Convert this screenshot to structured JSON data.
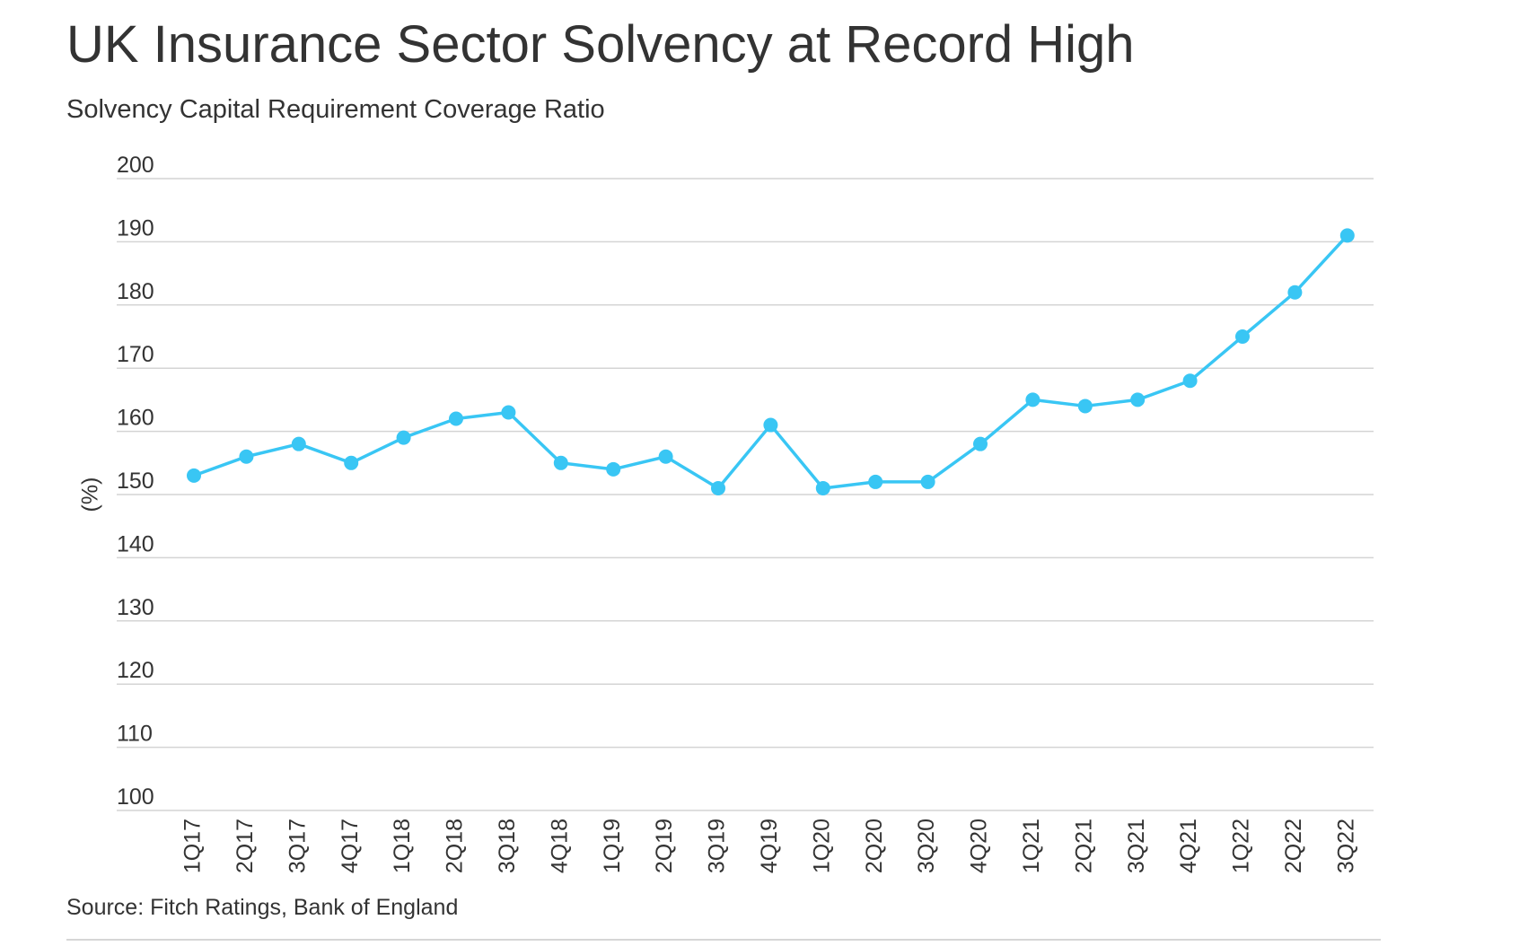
{
  "header": {
    "title": "UK Insurance Sector Solvency at Record High",
    "subtitle": "Solvency Capital Requirement Coverage Ratio"
  },
  "footer": {
    "source": "Source: Fitch Ratings, Bank of England"
  },
  "colors": {
    "series": "#39c6f4",
    "grid": "#d4d4d4",
    "text": "#333333"
  },
  "chart_data": {
    "type": "line",
    "title": "UK Insurance Sector Solvency at Record High",
    "subtitle": "Solvency Capital Requirement Coverage Ratio",
    "xlabel": "",
    "ylabel": "(%)",
    "ylim": [
      100,
      200
    ],
    "yticks": [
      "100",
      "110",
      "120",
      "130",
      "140",
      "150",
      "160",
      "170",
      "180",
      "190",
      "200"
    ],
    "grid": true,
    "legend": "none",
    "categories": [
      "1Q17",
      "2Q17",
      "3Q17",
      "4Q17",
      "1Q18",
      "2Q18",
      "3Q18",
      "4Q18",
      "1Q19",
      "2Q19",
      "3Q19",
      "4Q19",
      "1Q20",
      "2Q20",
      "3Q20",
      "4Q20",
      "1Q21",
      "2Q21",
      "3Q21",
      "4Q21",
      "1Q22",
      "2Q22",
      "3Q22"
    ],
    "series": [
      {
        "values": [
          153,
          156,
          158,
          155,
          159,
          162,
          163,
          155,
          154,
          156,
          151,
          161,
          151,
          152,
          152,
          158,
          165,
          164,
          165,
          168,
          175,
          182,
          191
        ]
      }
    ]
  }
}
